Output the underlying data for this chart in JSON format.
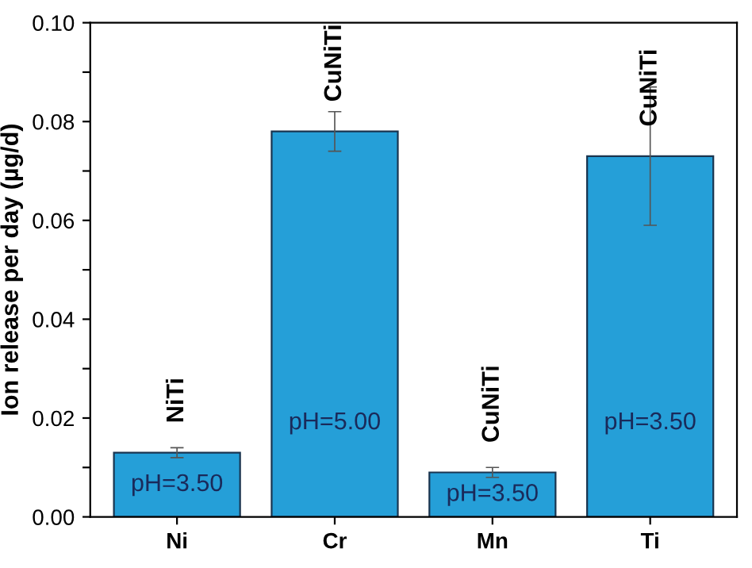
{
  "chart_data": {
    "type": "bar",
    "ylabel": "Ion release per day (µg/d)",
    "categories": [
      "Ni",
      "Cr",
      "Mn",
      "Ti"
    ],
    "values": [
      0.013,
      0.078,
      0.009,
      0.073
    ],
    "errors": [
      0.001,
      [
        0.074,
        0.082
      ],
      0.001,
      [
        0.059,
        0.087
      ]
    ],
    "color": "#259fd8",
    "ylim": [
      0,
      0.1
    ],
    "yticks": [
      {
        "value": 0,
        "label": "0.00"
      },
      {
        "value": 0.01,
        "label": null
      },
      {
        "value": 0.02,
        "label": "0.02"
      },
      {
        "value": 0.03,
        "label": null
      },
      {
        "value": 0.04,
        "label": "0.04"
      },
      {
        "value": 0.05,
        "label": null
      },
      {
        "value": 0.06,
        "label": "0.06"
      },
      {
        "value": 0.07,
        "label": null
      },
      {
        "value": 0.08,
        "label": "0.08"
      },
      {
        "value": 0.09,
        "label": null
      },
      {
        "value": 0.1,
        "label": "0.10"
      }
    ],
    "grid": false,
    "annotations": [
      "NiTi",
      "CuNiTi",
      "CuNiTi",
      "CuNiTi",
      "pH=3.50",
      "pH=5.00",
      "pH=3.50",
      "pH=3.50"
    ]
  }
}
